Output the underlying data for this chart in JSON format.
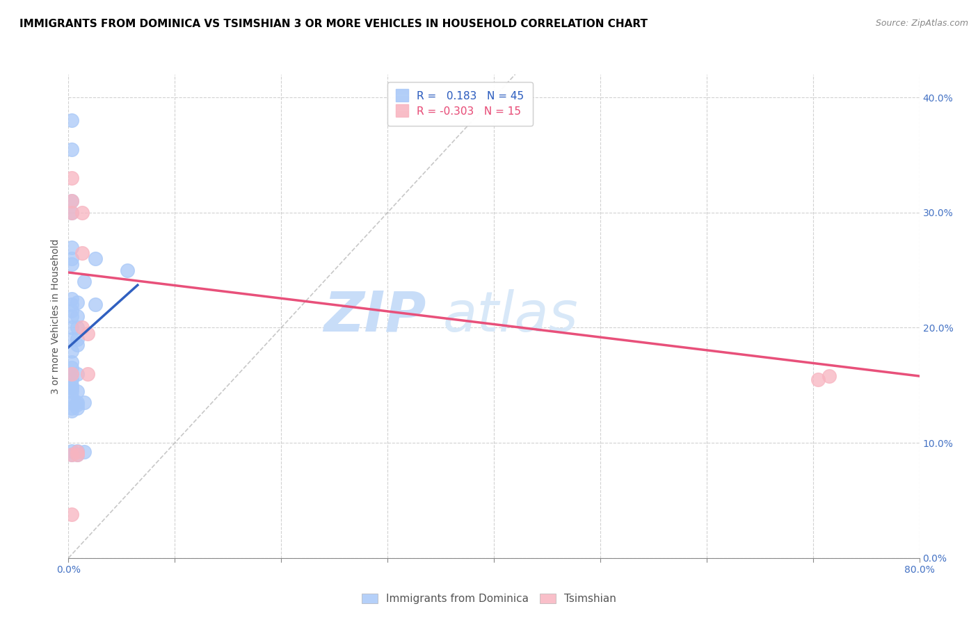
{
  "title": "IMMIGRANTS FROM DOMINICA VS TSIMSHIAN 3 OR MORE VEHICLES IN HOUSEHOLD CORRELATION CHART",
  "source": "Source: ZipAtlas.com",
  "ylabel": "3 or more Vehicles in Household",
  "xlabel_blue": "Immigrants from Dominica",
  "xlabel_pink": "Tsimshian",
  "xlim": [
    0.0,
    0.8
  ],
  "ylim": [
    0.0,
    0.42
  ],
  "yticks": [
    0.0,
    0.1,
    0.2,
    0.3,
    0.4
  ],
  "xticks": [
    0.0,
    0.1,
    0.2,
    0.3,
    0.4,
    0.5,
    0.6,
    0.7,
    0.8
  ],
  "r_blue": 0.183,
  "n_blue": 45,
  "r_pink": -0.303,
  "n_pink": 15,
  "blue_scatter_x": [
    0.003,
    0.003,
    0.003,
    0.003,
    0.003,
    0.003,
    0.003,
    0.003,
    0.003,
    0.003,
    0.003,
    0.003,
    0.003,
    0.003,
    0.003,
    0.003,
    0.003,
    0.003,
    0.003,
    0.003,
    0.003,
    0.003,
    0.003,
    0.003,
    0.003,
    0.008,
    0.008,
    0.008,
    0.008,
    0.008,
    0.008,
    0.008,
    0.008,
    0.008,
    0.008,
    0.008,
    0.008,
    0.015,
    0.015,
    0.015,
    0.025,
    0.025,
    0.055,
    0.003,
    0.003
  ],
  "blue_scatter_y": [
    0.38,
    0.355,
    0.31,
    0.3,
    0.27,
    0.26,
    0.255,
    0.225,
    0.22,
    0.215,
    0.21,
    0.2,
    0.19,
    0.18,
    0.17,
    0.165,
    0.16,
    0.155,
    0.15,
    0.148,
    0.145,
    0.14,
    0.135,
    0.13,
    0.128,
    0.222,
    0.21,
    0.2,
    0.19,
    0.185,
    0.16,
    0.145,
    0.135,
    0.133,
    0.13,
    0.093,
    0.09,
    0.24,
    0.135,
    0.092,
    0.26,
    0.22,
    0.25,
    0.093,
    0.09
  ],
  "pink_scatter_x": [
    0.003,
    0.003,
    0.003,
    0.003,
    0.003,
    0.008,
    0.008,
    0.013,
    0.013,
    0.013,
    0.018,
    0.018,
    0.705,
    0.715,
    0.003
  ],
  "pink_scatter_y": [
    0.33,
    0.31,
    0.3,
    0.16,
    0.09,
    0.092,
    0.09,
    0.3,
    0.265,
    0.2,
    0.195,
    0.16,
    0.155,
    0.158,
    0.038
  ],
  "blue_line_x": [
    0.0,
    0.065
  ],
  "blue_line_y": [
    0.183,
    0.237
  ],
  "pink_line_x": [
    0.0,
    0.8
  ],
  "pink_line_y": [
    0.248,
    0.158
  ],
  "diag_line_x": [
    0.0,
    0.42
  ],
  "diag_line_y": [
    0.0,
    0.42
  ],
  "blue_color": "#a8c8f8",
  "pink_color": "#f8b4c0",
  "blue_line_color": "#3060c0",
  "pink_line_color": "#e8507a",
  "diag_color": "#b0b0b0",
  "watermark_zip": "ZIP",
  "watermark_atlas": "atlas",
  "title_fontsize": 11,
  "axis_tick_fontsize": 10,
  "legend_fontsize": 11,
  "source_fontsize": 9
}
